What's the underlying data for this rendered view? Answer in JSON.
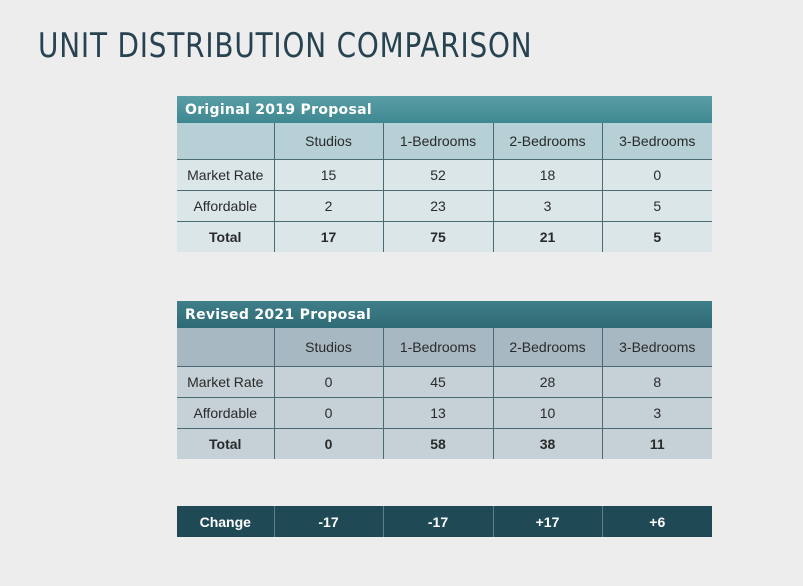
{
  "title": "UNIT DISTRIBUTION COMPARISON",
  "columns": [
    "Studios",
    "1-Bedrooms",
    "2-Bedrooms",
    "3-Bedrooms"
  ],
  "original": {
    "caption": "Original 2019 Proposal",
    "rows": [
      {
        "label": "Market Rate",
        "values": [
          "15",
          "52",
          "18",
          "0"
        ]
      },
      {
        "label": "Affordable",
        "values": [
          "2",
          "23",
          "3",
          "5"
        ]
      },
      {
        "label": "Total",
        "values": [
          "17",
          "75",
          "21",
          "5"
        ]
      }
    ]
  },
  "revised": {
    "caption": "Revised 2021 Proposal",
    "rows": [
      {
        "label": "Market Rate",
        "values": [
          "0",
          "45",
          "28",
          "8"
        ]
      },
      {
        "label": "Affordable",
        "values": [
          "0",
          "13",
          "10",
          "3"
        ]
      },
      {
        "label": "Total",
        "values": [
          "0",
          "58",
          "38",
          "11"
        ]
      }
    ]
  },
  "change": {
    "label": "Change",
    "values": [
      "-17",
      "-17",
      "+17",
      "+6"
    ]
  }
}
